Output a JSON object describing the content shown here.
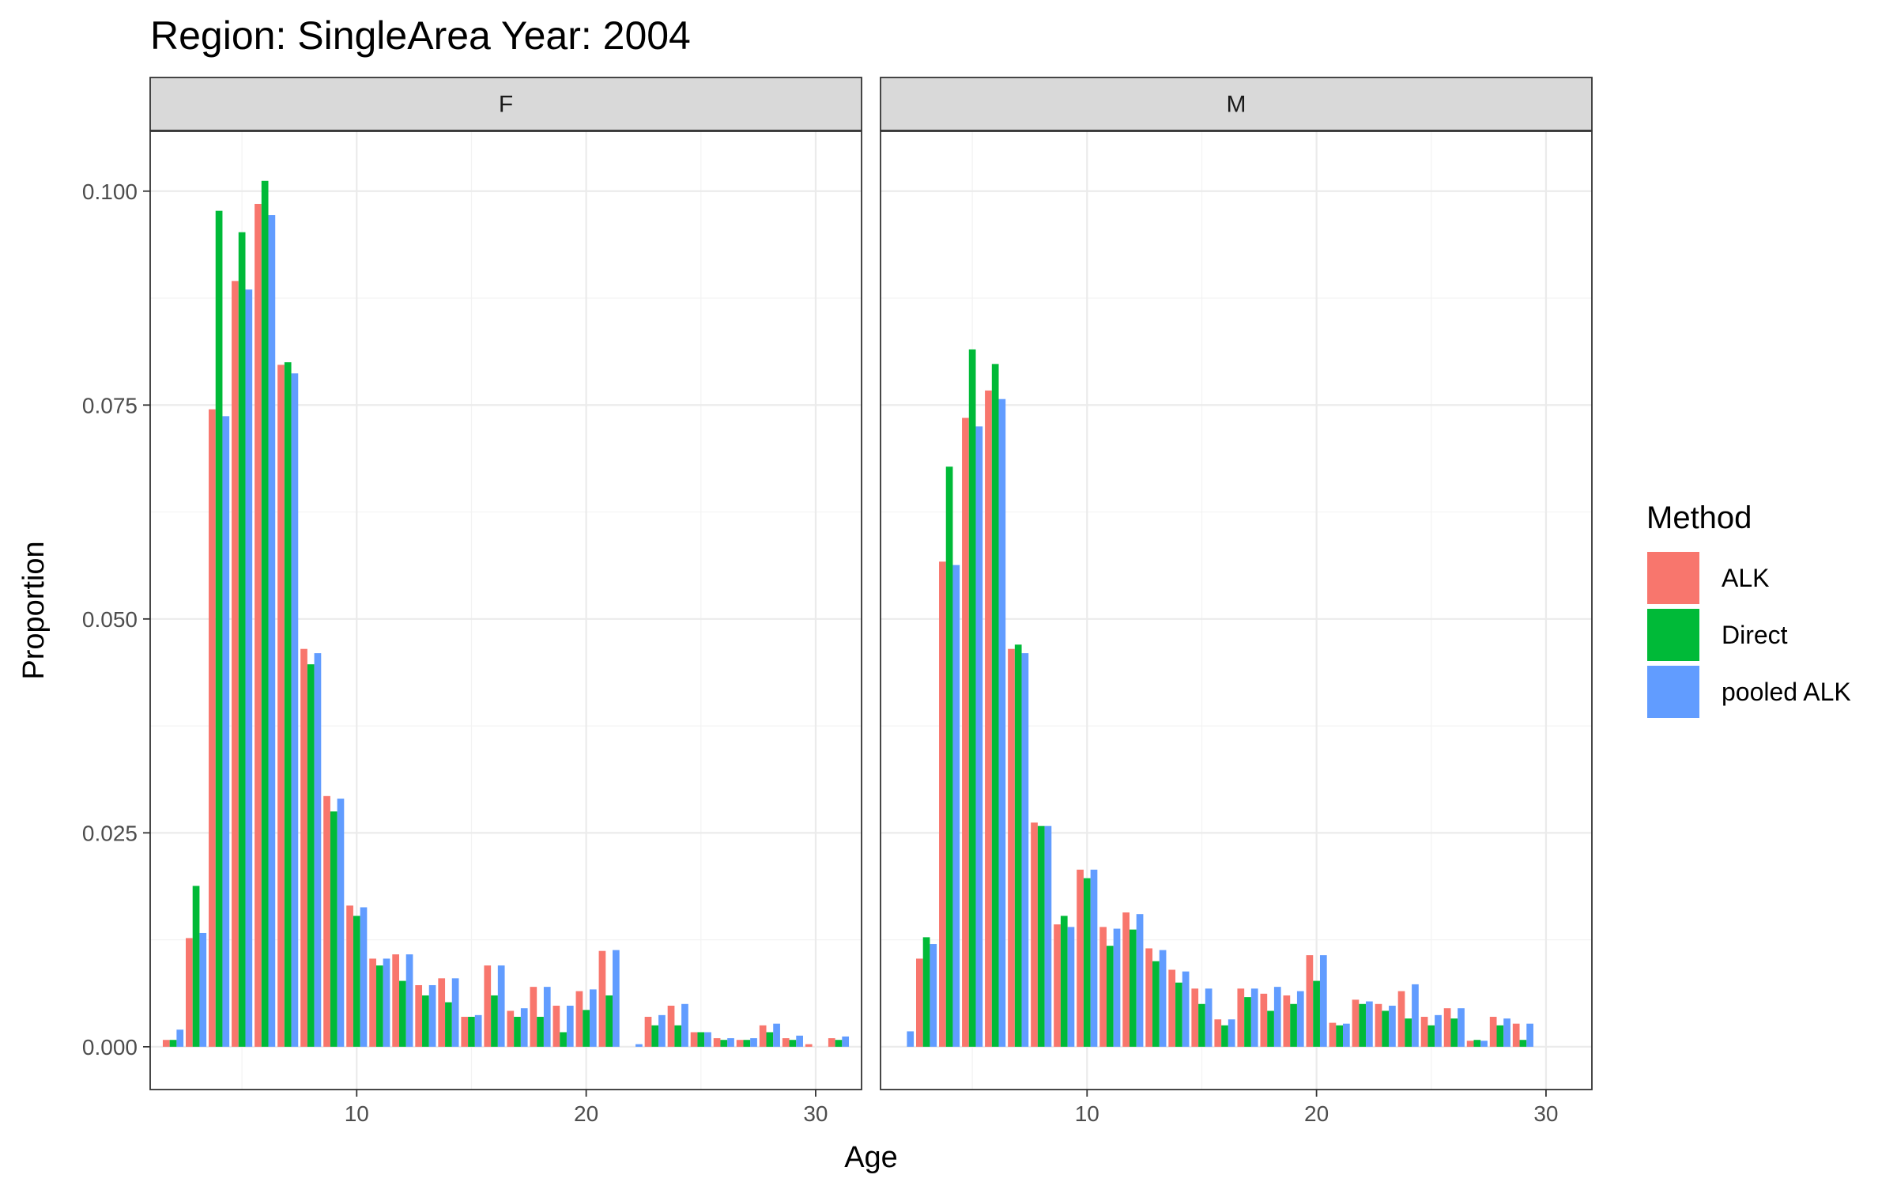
{
  "chart_data": {
    "type": "bar",
    "title": "Region: SingleArea Year: 2004",
    "xlabel": "Age",
    "ylabel": "Proportion",
    "xlim": [
      1,
      32
    ],
    "ylim": [
      -0.005,
      0.107
    ],
    "x_ticks": [
      10,
      20,
      30
    ],
    "y_ticks": [
      0.0,
      0.025,
      0.05,
      0.075,
      0.1
    ],
    "y_tick_labels": [
      "0.000",
      "0.025",
      "0.050",
      "0.075",
      "0.100"
    ],
    "grid": true,
    "legend": {
      "title": "Method",
      "position": "right",
      "entries": [
        {
          "name": "ALK",
          "color": "#F8766D"
        },
        {
          "name": "Direct",
          "color": "#00BA38"
        },
        {
          "name": "pooled ALK",
          "color": "#619CFF"
        }
      ]
    },
    "panels": [
      {
        "label": "F",
        "ages": [
          2,
          3,
          4,
          5,
          6,
          7,
          8,
          9,
          10,
          11,
          12,
          13,
          14,
          15,
          16,
          17,
          18,
          19,
          20,
          21,
          22,
          23,
          24,
          25,
          26,
          27,
          28,
          29,
          30,
          31
        ],
        "series": [
          {
            "name": "ALK",
            "values": [
              0.0008,
              0.0127,
              0.0745,
              0.0895,
              0.0985,
              0.0797,
              0.0465,
              0.0293,
              0.0165,
              0.0103,
              0.0108,
              0.0072,
              0.008,
              0.0035,
              0.0095,
              0.0042,
              0.007,
              0.0048,
              0.0065,
              0.0112,
              0.0,
              0.0035,
              0.0048,
              0.0017,
              0.001,
              0.0008,
              0.0025,
              0.001,
              0.0003,
              0.001
            ]
          },
          {
            "name": "Direct",
            "values": [
              0.0008,
              0.0188,
              0.0977,
              0.0952,
              0.1012,
              0.08,
              0.0447,
              0.0275,
              0.0153,
              0.0095,
              0.0077,
              0.006,
              0.0052,
              0.0035,
              0.006,
              0.0035,
              0.0035,
              0.0017,
              0.0043,
              0.006,
              0.0,
              0.0025,
              0.0025,
              0.0017,
              0.0008,
              0.0008,
              0.0017,
              0.0008,
              0.0,
              0.0008
            ]
          },
          {
            "name": "pooled ALK",
            "values": [
              0.002,
              0.0133,
              0.0737,
              0.0885,
              0.0972,
              0.0787,
              0.046,
              0.029,
              0.0163,
              0.0103,
              0.0108,
              0.0072,
              0.008,
              0.0037,
              0.0095,
              0.0045,
              0.007,
              0.0048,
              0.0067,
              0.0113,
              0.0003,
              0.0037,
              0.005,
              0.0017,
              0.001,
              0.001,
              0.0027,
              0.0013,
              0.0,
              0.0012
            ]
          }
        ]
      },
      {
        "label": "M",
        "ages": [
          2,
          3,
          4,
          5,
          6,
          7,
          8,
          9,
          10,
          11,
          12,
          13,
          14,
          15,
          16,
          17,
          18,
          19,
          20,
          21,
          22,
          23,
          24,
          25,
          26,
          27,
          28,
          29
        ],
        "series": [
          {
            "name": "ALK",
            "values": [
              0.0,
              0.0103,
              0.0567,
              0.0735,
              0.0767,
              0.0465,
              0.0262,
              0.0143,
              0.0207,
              0.014,
              0.0157,
              0.0115,
              0.009,
              0.0068,
              0.0032,
              0.0068,
              0.0062,
              0.006,
              0.0107,
              0.0028,
              0.0055,
              0.005,
              0.0065,
              0.0035,
              0.0045,
              0.0007,
              0.0035,
              0.0027
            ]
          },
          {
            "name": "Direct",
            "values": [
              0.0,
              0.0128,
              0.0678,
              0.0815,
              0.0798,
              0.047,
              0.0258,
              0.0153,
              0.0197,
              0.0118,
              0.0137,
              0.01,
              0.0075,
              0.005,
              0.0025,
              0.0058,
              0.0042,
              0.005,
              0.0077,
              0.0025,
              0.005,
              0.0042,
              0.0033,
              0.0025,
              0.0033,
              0.0008,
              0.0025,
              0.0008
            ]
          },
          {
            "name": "pooled ALK",
            "values": [
              0.0018,
              0.012,
              0.0563,
              0.0725,
              0.0757,
              0.046,
              0.0258,
              0.014,
              0.0207,
              0.0138,
              0.0155,
              0.0113,
              0.0088,
              0.0068,
              0.0032,
              0.0068,
              0.007,
              0.0065,
              0.0107,
              0.0027,
              0.0053,
              0.0048,
              0.0073,
              0.0037,
              0.0045,
              0.0007,
              0.0033,
              0.0027
            ]
          }
        ]
      }
    ]
  }
}
